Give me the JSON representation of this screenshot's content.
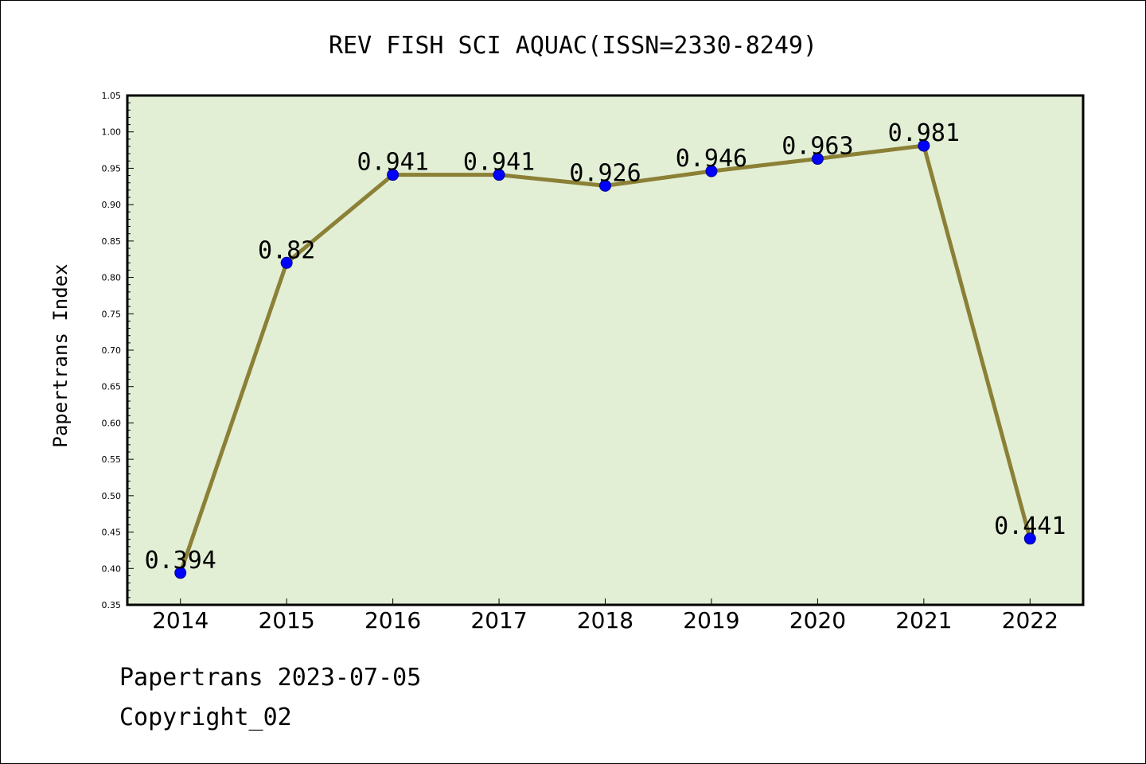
{
  "chart_data": {
    "type": "line",
    "title": "REV FISH SCI AQUAC(ISSN=2330-8249)",
    "xlabel": "",
    "ylabel": "Papertrans Index",
    "categories": [
      "2014",
      "2015",
      "2016",
      "2017",
      "2018",
      "2019",
      "2020",
      "2021",
      "2022"
    ],
    "series": [
      {
        "values": [
          0.394,
          0.82,
          0.941,
          0.941,
          0.926,
          0.946,
          0.963,
          0.981,
          0.441
        ]
      }
    ],
    "data_labels": [
      "0.394",
      "0.82",
      "0.941",
      "0.941",
      "0.926",
      "0.946",
      "0.963",
      "0.981",
      "0.441"
    ],
    "ylim": [
      0.35,
      1.05
    ],
    "yticks": [
      "0.35",
      "0.40",
      "0.45",
      "0.50",
      "0.55",
      "0.60",
      "0.65",
      "0.70",
      "0.75",
      "0.80",
      "0.85",
      "0.90",
      "0.95",
      "1.00",
      "1.05"
    ],
    "grid": false,
    "legend": "none",
    "colors": {
      "plot_background": "#e2efd5",
      "line": "#8b8036",
      "marker": "#0000ff",
      "marker_edge": "#00008b"
    }
  },
  "footer": {
    "line1": "Papertrans 2023-07-05",
    "line2": "Copyright_02"
  }
}
